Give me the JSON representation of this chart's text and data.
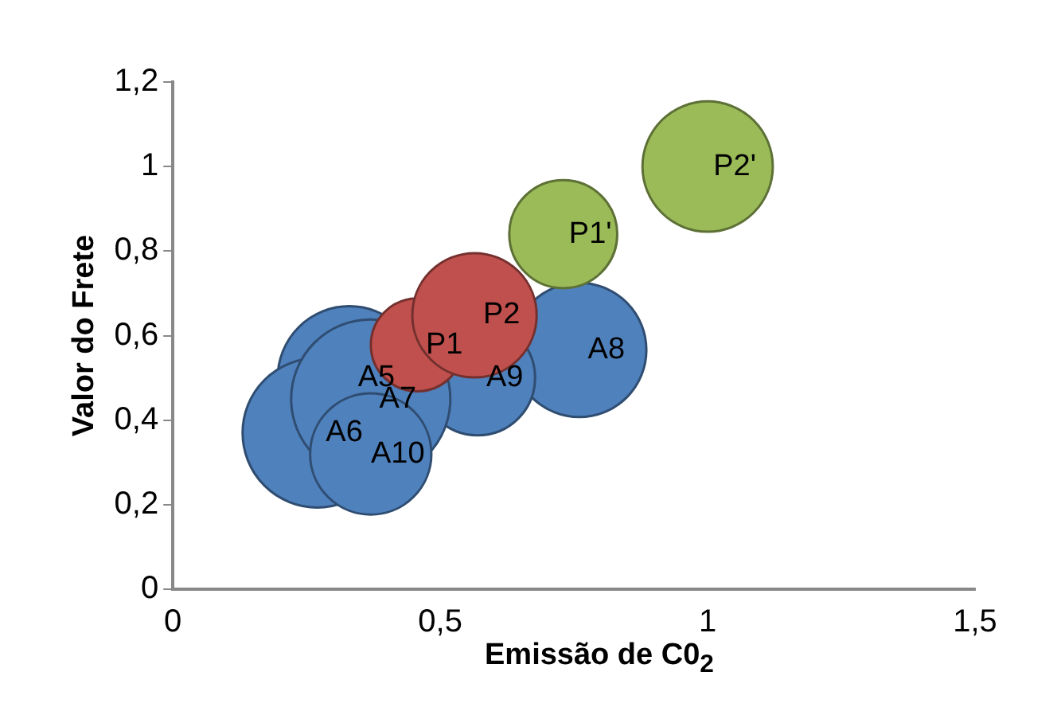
{
  "chart_data": {
    "type": "bubble",
    "xlabel": "Emissão de C0$_{2}$",
    "ylabel": "Valor do Frete",
    "xlim": [
      0,
      1.5
    ],
    "xticks": [
      0,
      {
        "value": 0.5,
        "label": "0,5"
      },
      1,
      {
        "value": 1.5,
        "label": "1,5"
      }
    ],
    "ylim": [
      0,
      1.2
    ],
    "yticks": [
      0,
      {
        "value": 0.2,
        "label": "0,2"
      },
      {
        "value": 0.4,
        "label": "0,4"
      },
      {
        "value": 0.6,
        "label": "0,6"
      },
      {
        "value": 0.8,
        "label": "0,8"
      },
      1,
      {
        "value": 1.2,
        "label": "1,2"
      }
    ],
    "grid": false,
    "legend": false,
    "series": [
      {
        "color": "#4f81bd",
        "x": [
          0.33,
          0.27,
          0.76,
          0.57,
          0.37,
          0.37
        ],
        "values": [
          0.5,
          0.37,
          0.566,
          0.5,
          0.45,
          0.32
        ],
        "sizes": [
          0.81,
          0.88,
          0.71,
          0.52,
          1,
          0.58
        ],
        "value_labels": [
          "A5",
          "A6",
          "A8",
          "A9",
          "A7",
          "A10"
        ]
      },
      {
        "color": "#c0504d",
        "x": [
          0.457,
          0.564
        ],
        "values": [
          0.578,
          0.648
        ],
        "sizes": [
          0.34,
          0.61
        ],
        "value_labels": [
          "P1",
          "P2"
        ]
      },
      {
        "color": "#9bbb59",
        "x": [
          0.73,
          1.0
        ],
        "values": [
          0.84,
          1.0
        ],
        "sizes": [
          0.46,
          0.67
        ],
        "value_labels": [
          "P1'",
          "P2'"
        ]
      }
    ]
  }
}
